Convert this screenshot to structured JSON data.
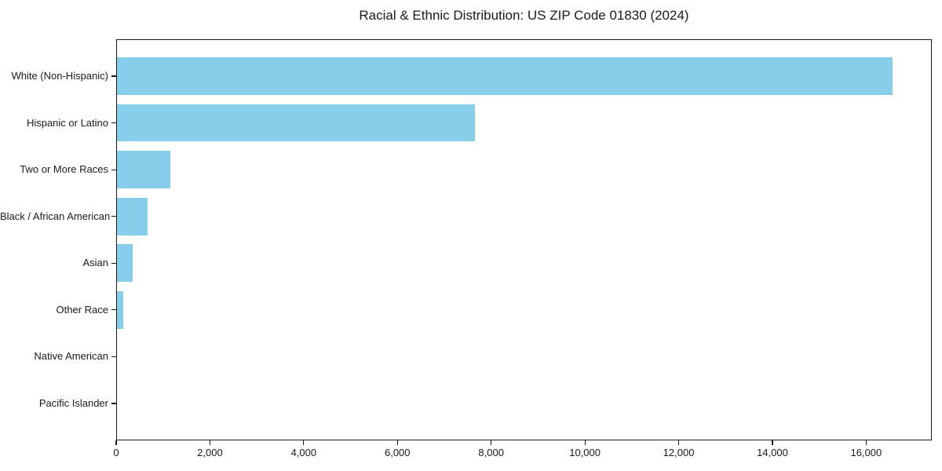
{
  "page": {
    "background_color": "#ffffff"
  },
  "chart_data": {
    "type": "bar",
    "orientation": "horizontal",
    "title": "Racial & Ethnic Distribution: US ZIP Code 01830 (2024)",
    "categories": [
      "White (Non-Hispanic)",
      "Hispanic or Latino",
      "Two or More Races",
      "Black / African American",
      "Asian",
      "Other Race",
      "Native American",
      "Pacific Islander"
    ],
    "values": [
      16565,
      7660,
      1150,
      675,
      355,
      155,
      0,
      0
    ],
    "bar_color": "#87CEEB",
    "axis_color": "#1a1a1a",
    "text_color": "#1a1a1a",
    "xlabel": "",
    "ylabel": "",
    "xlim": [
      0,
      17400
    ],
    "x_ticks": [
      0,
      2000,
      4000,
      6000,
      8000,
      10000,
      12000,
      14000,
      16000
    ],
    "x_tick_labels": [
      "0",
      "2,000",
      "4,000",
      "6,000",
      "8,000",
      "10,000",
      "12,000",
      "14,000",
      "16,000"
    ],
    "grid": false,
    "legend": null
  }
}
